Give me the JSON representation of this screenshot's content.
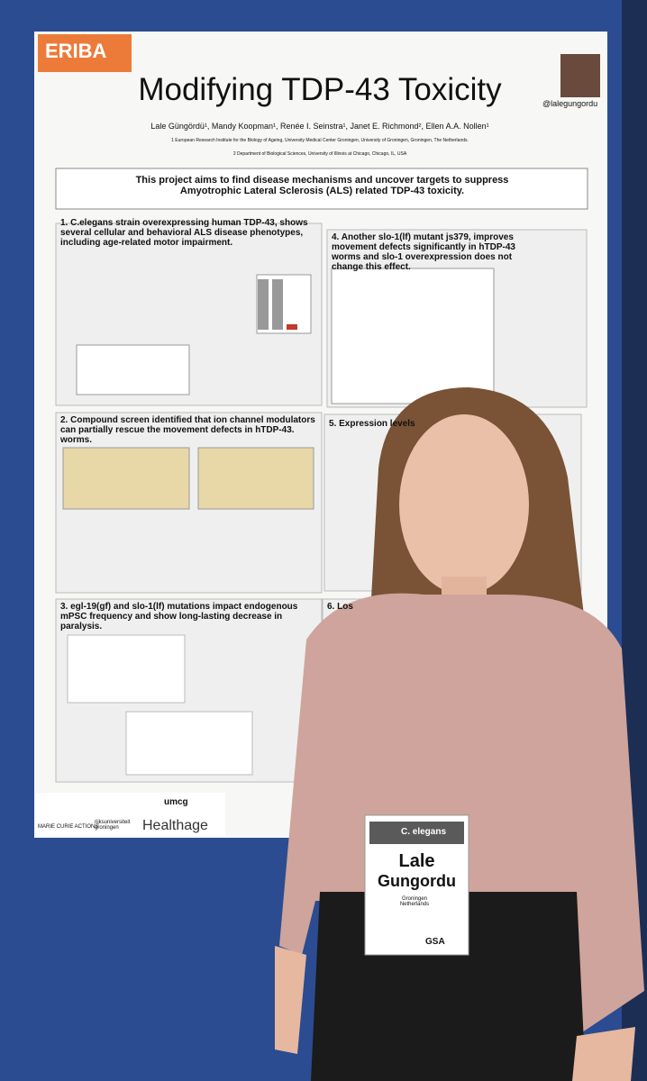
{
  "poster": {
    "logo": "ERIBA",
    "title": "Modifying TDP-43 Toxicity",
    "authors": "Lale Güngördü¹, Mandy Koopman¹, Renée I. Seinstra¹, Janet E. Richmond², Ellen A.A. Nollen¹",
    "affiliations": [
      "1 European Research Institute for the Biology of Ageing, University Medical Center Groningen, University of Groningen, Groningen, The Netherlands.",
      "2 Department of Biological Sciences, University of Illinois at Chicago, Chicago, IL, USA"
    ],
    "handle": "@lalegungordu",
    "aim": "This project aims to find disease mechanisms and uncover targets to suppress Amyotrophic Lateral Sclerosis (ALS) related TDP-43 toxicity.",
    "sections": [
      "1. C.elegans strain overexpressing human TDP-43, shows several cellular and behavioral ALS disease phenotypes, including age-related motor impairment.",
      "2. Compound screen identified that ion channel modulators can partially rescue the movement defects in hTDP-43. worms.",
      "3. egl-19(gf) and slo-1(lf) mutations impact endogenous mPSC frequency and show long-lasting decrease in paralysis.",
      "4. Another slo-1(lf) mutant js379, improves movement defects significantly in hTDP-43 worms and slo-1 overexpression does not change this effect.",
      "5. Expression levels",
      "6. Los"
    ],
    "footer_logos": [
      "MARIE CURIE ACTIONS",
      "rijksuniversiteit groningen",
      "umcg",
      "Healthage"
    ]
  },
  "badge": {
    "conference": "C. elegans",
    "first_name": "Lale",
    "last_name": "Gungordu",
    "location": "Groningen Netherlands",
    "org": "GSA"
  }
}
